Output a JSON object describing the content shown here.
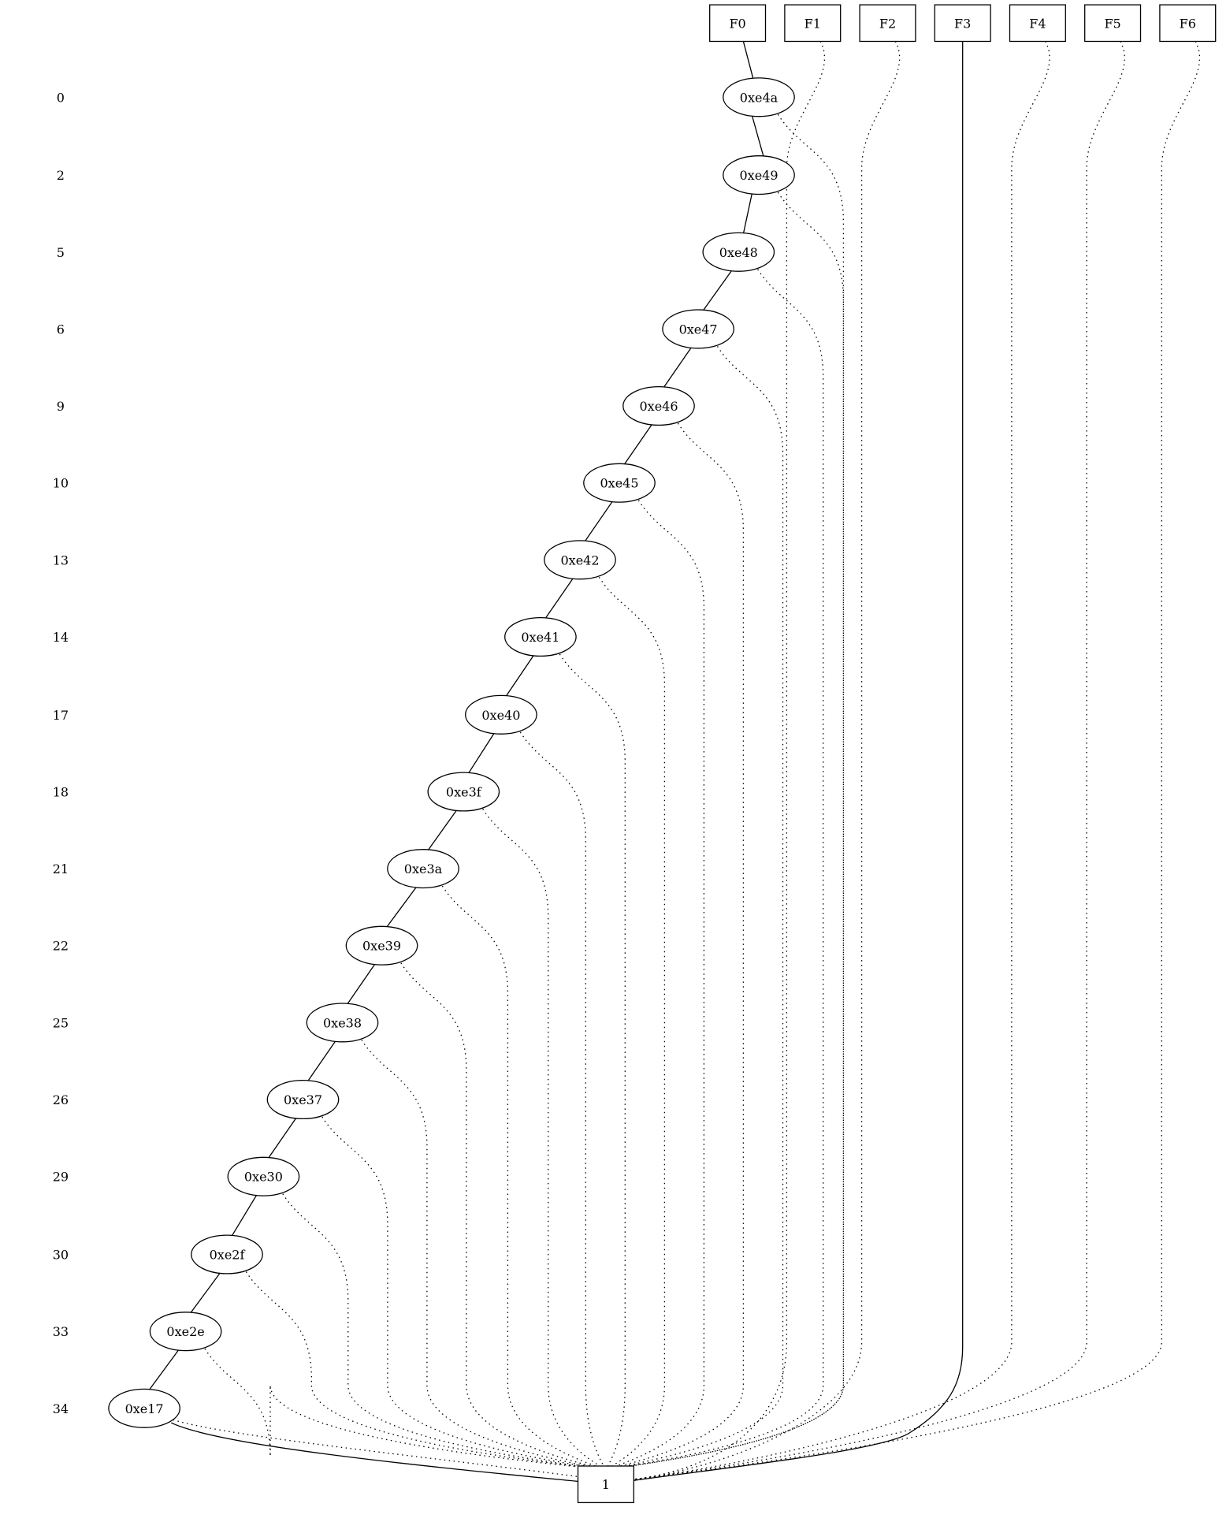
{
  "diagram": {
    "levels": [
      "0",
      "2",
      "5",
      "6",
      "9",
      "10",
      "13",
      "14",
      "17",
      "18",
      "21",
      "22",
      "25",
      "26",
      "29",
      "30",
      "33",
      "34"
    ],
    "roots": [
      "F0",
      "F1",
      "F2",
      "F3",
      "F4",
      "F5",
      "F6"
    ],
    "nodes": [
      "0xe4a",
      "0xe49",
      "0xe48",
      "0xe47",
      "0xe46",
      "0xe45",
      "0xe42",
      "0xe41",
      "0xe40",
      "0xe3f",
      "0xe3a",
      "0xe39",
      "0xe38",
      "0xe37",
      "0xe30",
      "0xe2f",
      "0xe2e",
      "0xe17"
    ],
    "terminal": "1",
    "colors": {
      "stroke": "#000000",
      "background": "#ffffff"
    }
  }
}
